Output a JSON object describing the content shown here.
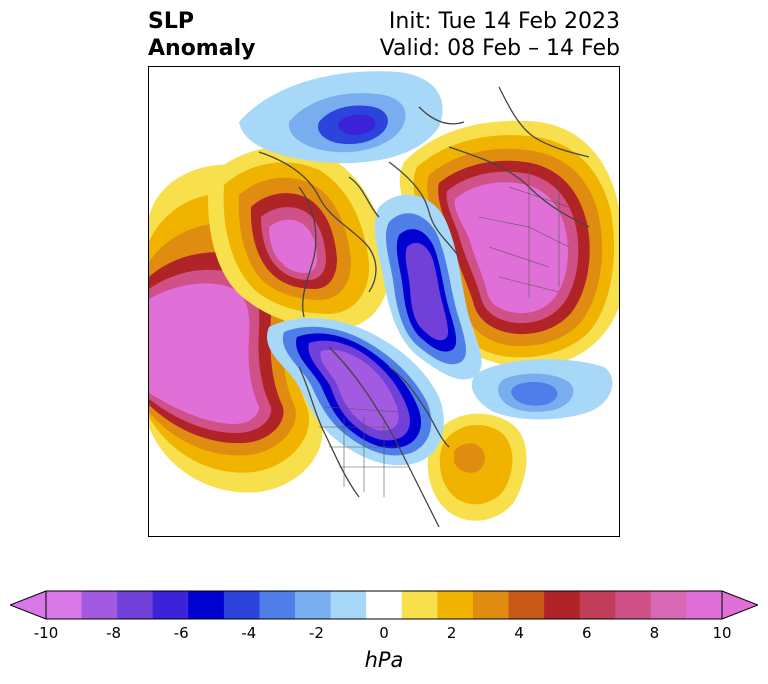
{
  "title": {
    "left_line1": "SLP",
    "left_line2": "Anomaly",
    "right_line1": "Init: Tue 14 Feb 2023",
    "right_line2": "Valid: 08 Feb – 14 Feb"
  },
  "colorbar": {
    "unit": "hPa",
    "min": -10,
    "max": 10,
    "ticks": [
      "-10",
      "-8",
      "-6",
      "-4",
      "-2",
      "0",
      "2",
      "4",
      "6",
      "8",
      "10"
    ],
    "tick_values": [
      -10,
      -8,
      -6,
      -4,
      -2,
      0,
      2,
      4,
      6,
      8,
      10
    ],
    "extend": "both",
    "colors": [
      "#d878e8",
      "#a25ae0",
      "#7040d8",
      "#3c22d8",
      "#0000d0",
      "#2c44dc",
      "#4f7ee8",
      "#78aef0",
      "#a8d8f8",
      "#ffffff",
      "#f8e04c",
      "#f0b400",
      "#e08c10",
      "#c85818",
      "#b02428",
      "#c03c58",
      "#d05088",
      "#d868b4",
      "#e070d8"
    ]
  },
  "map": {
    "projection": "north polar stereographic",
    "variable": "sea level pressure anomaly",
    "coastlines": true,
    "political_boundaries": true,
    "features": [
      {
        "name": "negative-anomaly-north-america",
        "min_value": -10
      },
      {
        "name": "negative-anomaly-arctic",
        "min_value": -8
      },
      {
        "name": "negative-anomaly-siberia",
        "min_value": -6
      },
      {
        "name": "negative-anomaly-atlantic",
        "min_value": -4
      },
      {
        "name": "positive-anomaly-north-pacific",
        "max_value": 10
      },
      {
        "name": "positive-anomaly-greenland-atlantic",
        "max_value": 10
      },
      {
        "name": "positive-anomaly-eurasia",
        "max_value": 10
      },
      {
        "name": "positive-anomaly-subtropical-atlantic",
        "max_value": 4
      }
    ]
  }
}
